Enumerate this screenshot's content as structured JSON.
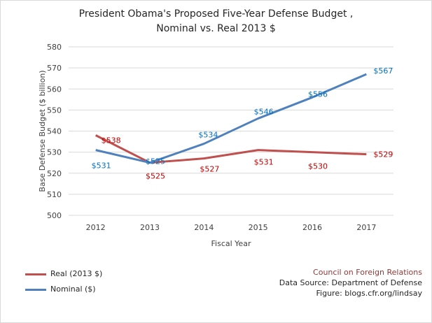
{
  "chart_data": {
    "type": "line",
    "title_line1": "President Obama's Proposed Five-Year Defense Budget ,",
    "title_line2": "Nominal vs. Real 2013 $",
    "xlabel": "Fiscal Year",
    "ylabel": "Base Defense Budget ($ billion)",
    "categories": [
      "2012",
      "2013",
      "2014",
      "2015",
      "2016",
      "2017"
    ],
    "ylim": [
      500,
      580
    ],
    "yticks": [
      500,
      510,
      520,
      530,
      540,
      550,
      560,
      570,
      580
    ],
    "grid": true,
    "series": [
      {
        "name": "Real (2013 $)",
        "color": "#c0504d",
        "label_color": "#c00000",
        "values": [
          538,
          525,
          527,
          531,
          530,
          529
        ],
        "labels": [
          "$538",
          "$525",
          "$527",
          "$531",
          "$530",
          "$529"
        ]
      },
      {
        "name": "Nominal ($)",
        "color": "#4f81bd",
        "label_color": "#0070c0",
        "values": [
          531,
          525,
          534,
          546,
          556,
          567
        ],
        "labels": [
          "$531",
          "$525",
          "$534",
          "$546",
          "$556",
          "$567"
        ]
      }
    ]
  },
  "source": {
    "org": "Council on Foreign Relations",
    "data_source": "Data Source: Department of Defense",
    "figure": "Figure: blogs.cfr.org/lindsay"
  }
}
